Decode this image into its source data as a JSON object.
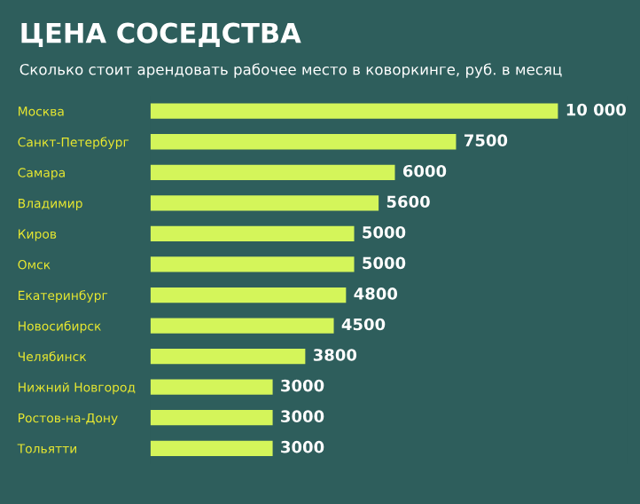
{
  "chart_data": {
    "type": "bar",
    "orientation": "horizontal",
    "title": "ЦЕНА СОСЕДСТВА",
    "subtitle": "Сколько стоит арендовать рабочее место в коворкинге, руб. в месяц",
    "categories": [
      "Москва",
      "Санкт-Петербург",
      "Самара",
      "Владимир",
      "Киров",
      "Омск",
      "Екатеринбург",
      "Новосибирск",
      "Челябинск",
      "Нижний Новгород",
      "Ростов-на-Дону",
      "Тольятти"
    ],
    "values": [
      10000,
      7500,
      6000,
      5600,
      5000,
      5000,
      4800,
      4500,
      3800,
      3000,
      3000,
      3000
    ],
    "value_labels": [
      "10 000",
      "7500",
      "6000",
      "5600",
      "5000",
      "5000",
      "4800",
      "4500",
      "3800",
      "3000",
      "3000",
      "3000"
    ],
    "color": "#d4f55a",
    "tick_labels": "y",
    "grid": false,
    "legend": false
  }
}
